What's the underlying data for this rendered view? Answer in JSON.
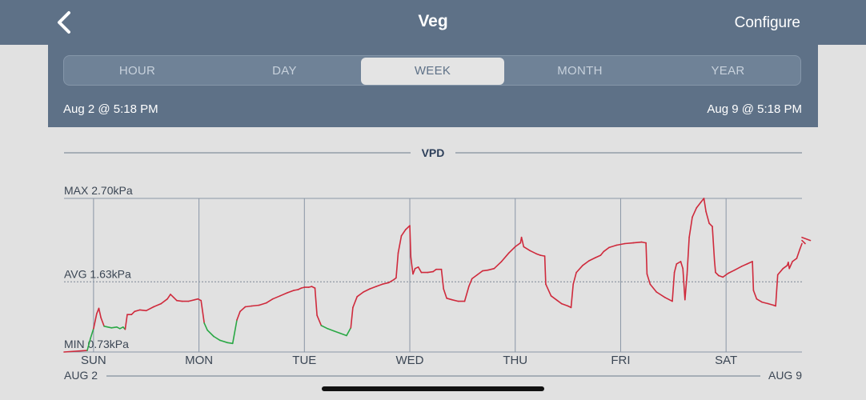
{
  "nav": {
    "title": "Veg",
    "configure_label": "Configure",
    "back_icon": "chevron-left-icon"
  },
  "segments": [
    {
      "label": "HOUR",
      "active": false
    },
    {
      "label": "DAY",
      "active": false
    },
    {
      "label": "WEEK",
      "active": true
    },
    {
      "label": "MONTH",
      "active": false
    },
    {
      "label": "YEAR",
      "active": false
    }
  ],
  "range": {
    "start": "Aug 2 @ 5:18 PM",
    "end": "Aug 9 @ 5:18 PM"
  },
  "chart_data": {
    "type": "line",
    "title": "VPD",
    "unit": "kPa",
    "max_label": "MAX 2.70kPa",
    "avg_label": "AVG 1.63kPa",
    "min_label": "MIN 0.73kPa",
    "max": 2.7,
    "avg": 1.63,
    "min": 0.73,
    "ylim": [
      0.73,
      2.7
    ],
    "x_start_label": "AUG 2",
    "x_end_label": "AUG 9",
    "xlim": [
      0,
      7
    ],
    "day_labels": [
      "SUN",
      "MON",
      "TUE",
      "WED",
      "THU",
      "FRI",
      "SAT"
    ],
    "day_positions": [
      0.28,
      1.28,
      2.28,
      3.28,
      4.28,
      5.28,
      6.28
    ],
    "colors": {
      "above": "#cf2a3c",
      "below": "#2aa845"
    },
    "series": [
      {
        "low_threshold": 1.08,
        "points": [
          [
            0.0,
            0.73
          ],
          [
            0.22,
            0.75
          ],
          [
            0.25,
            0.9
          ],
          [
            0.28,
            1.03
          ],
          [
            0.31,
            1.22
          ],
          [
            0.33,
            1.29
          ],
          [
            0.35,
            1.17
          ],
          [
            0.38,
            1.06
          ],
          [
            0.45,
            1.04
          ],
          [
            0.5,
            1.05
          ],
          [
            0.53,
            1.03
          ],
          [
            0.56,
            1.05
          ],
          [
            0.58,
            1.02
          ],
          [
            0.6,
            1.21
          ],
          [
            0.64,
            1.21
          ],
          [
            0.67,
            1.25
          ],
          [
            0.72,
            1.27
          ],
          [
            0.78,
            1.26
          ],
          [
            0.85,
            1.31
          ],
          [
            0.92,
            1.35
          ],
          [
            0.98,
            1.41
          ],
          [
            1.01,
            1.47
          ],
          [
            1.04,
            1.43
          ],
          [
            1.07,
            1.39
          ],
          [
            1.12,
            1.38
          ],
          [
            1.18,
            1.38
          ],
          [
            1.24,
            1.4
          ],
          [
            1.27,
            1.41
          ],
          [
            1.3,
            1.39
          ],
          [
            1.33,
            1.1
          ],
          [
            1.36,
            1.01
          ],
          [
            1.42,
            0.93
          ],
          [
            1.48,
            0.88
          ],
          [
            1.55,
            0.85
          ],
          [
            1.6,
            0.84
          ],
          [
            1.64,
            1.14
          ],
          [
            1.67,
            1.25
          ],
          [
            1.72,
            1.31
          ],
          [
            1.78,
            1.32
          ],
          [
            1.85,
            1.33
          ],
          [
            1.92,
            1.36
          ],
          [
            1.98,
            1.41
          ],
          [
            2.05,
            1.45
          ],
          [
            2.12,
            1.49
          ],
          [
            2.18,
            1.52
          ],
          [
            2.22,
            1.53
          ],
          [
            2.25,
            1.55
          ],
          [
            2.28,
            1.56
          ],
          [
            2.32,
            1.56
          ],
          [
            2.35,
            1.57
          ],
          [
            2.38,
            1.55
          ],
          [
            2.4,
            1.2
          ],
          [
            2.44,
            1.07
          ],
          [
            2.5,
            1.03
          ],
          [
            2.56,
            1.0
          ],
          [
            2.62,
            0.97
          ],
          [
            2.68,
            0.94
          ],
          [
            2.72,
            1.04
          ],
          [
            2.74,
            1.3
          ],
          [
            2.78,
            1.44
          ],
          [
            2.84,
            1.5
          ],
          [
            2.9,
            1.54
          ],
          [
            2.96,
            1.57
          ],
          [
            3.02,
            1.6
          ],
          [
            3.08,
            1.62
          ],
          [
            3.13,
            1.66
          ],
          [
            3.15,
            1.68
          ],
          [
            3.17,
            2.0
          ],
          [
            3.2,
            2.22
          ],
          [
            3.24,
            2.3
          ],
          [
            3.28,
            2.35
          ],
          [
            3.29,
            1.95
          ],
          [
            3.3,
            1.83
          ],
          [
            3.31,
            1.73
          ],
          [
            3.33,
            1.8
          ],
          [
            3.36,
            1.82
          ],
          [
            3.39,
            1.75
          ],
          [
            3.45,
            1.75
          ],
          [
            3.5,
            1.76
          ],
          [
            3.53,
            1.79
          ],
          [
            3.58,
            1.79
          ],
          [
            3.6,
            1.54
          ],
          [
            3.63,
            1.42
          ],
          [
            3.68,
            1.4
          ],
          [
            3.74,
            1.38
          ],
          [
            3.8,
            1.38
          ],
          [
            3.84,
            1.57
          ],
          [
            3.87,
            1.67
          ],
          [
            3.92,
            1.72
          ],
          [
            3.97,
            1.77
          ],
          [
            4.02,
            1.78
          ],
          [
            4.08,
            1.8
          ],
          [
            4.15,
            1.89
          ],
          [
            4.22,
            2.0
          ],
          [
            4.28,
            2.08
          ],
          [
            4.31,
            2.11
          ],
          [
            4.33,
            2.13
          ],
          [
            4.34,
            2.2
          ],
          [
            4.36,
            2.08
          ],
          [
            4.42,
            2.03
          ],
          [
            4.48,
            1.99
          ],
          [
            4.52,
            1.97
          ],
          [
            4.56,
            1.96
          ],
          [
            4.57,
            1.6
          ],
          [
            4.62,
            1.45
          ],
          [
            4.68,
            1.39
          ],
          [
            4.72,
            1.35
          ],
          [
            4.78,
            1.32
          ],
          [
            4.81,
            1.3
          ],
          [
            4.83,
            1.6
          ],
          [
            4.86,
            1.75
          ],
          [
            4.92,
            1.84
          ],
          [
            4.98,
            1.9
          ],
          [
            5.04,
            1.94
          ],
          [
            5.09,
            1.97
          ],
          [
            5.12,
            2.02
          ],
          [
            5.17,
            2.07
          ],
          [
            5.24,
            2.1
          ],
          [
            5.32,
            2.12
          ],
          [
            5.4,
            2.13
          ],
          [
            5.48,
            2.14
          ],
          [
            5.52,
            2.13
          ],
          [
            5.53,
            1.73
          ],
          [
            5.56,
            1.6
          ],
          [
            5.62,
            1.5
          ],
          [
            5.7,
            1.43
          ],
          [
            5.77,
            1.38
          ],
          [
            5.79,
            1.75
          ],
          [
            5.81,
            1.86
          ],
          [
            5.85,
            1.89
          ],
          [
            5.87,
            1.8
          ],
          [
            5.89,
            1.4
          ],
          [
            5.91,
            1.72
          ],
          [
            5.93,
            2.2
          ],
          [
            5.96,
            2.46
          ],
          [
            6.0,
            2.58
          ],
          [
            6.04,
            2.65
          ],
          [
            6.07,
            2.7
          ],
          [
            6.09,
            2.53
          ],
          [
            6.12,
            2.38
          ],
          [
            6.15,
            2.34
          ],
          [
            6.17,
            1.9
          ],
          [
            6.18,
            1.75
          ],
          [
            6.21,
            1.71
          ],
          [
            6.25,
            1.69
          ],
          [
            6.3,
            1.74
          ],
          [
            6.36,
            1.78
          ],
          [
            6.43,
            1.83
          ],
          [
            6.48,
            1.86
          ],
          [
            6.53,
            1.89
          ],
          [
            6.54,
            1.52
          ],
          [
            6.57,
            1.41
          ],
          [
            6.62,
            1.37
          ],
          [
            6.68,
            1.35
          ],
          [
            6.73,
            1.33
          ],
          [
            6.75,
            1.32
          ],
          [
            6.77,
            1.72
          ],
          [
            6.82,
            1.8
          ],
          [
            6.86,
            1.84
          ],
          [
            6.87,
            1.88
          ],
          [
            6.88,
            1.8
          ],
          [
            6.91,
            1.89
          ],
          [
            6.95,
            1.93
          ],
          [
            6.98,
            2.05
          ],
          [
            7.03,
            2.12
          ],
          [
            7.08,
            2.16
          ],
          [
            7.12,
            2.2
          ]
        ]
      }
    ]
  }
}
